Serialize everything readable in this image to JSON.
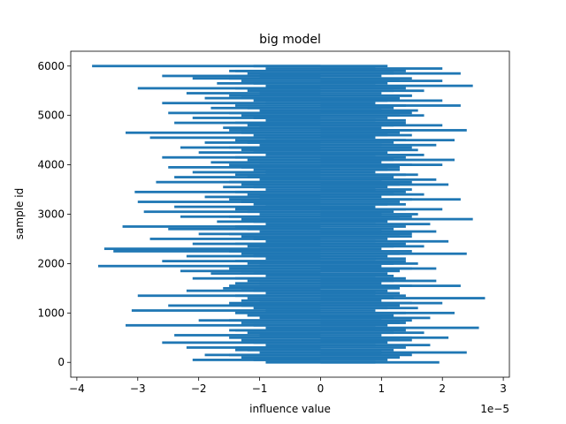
{
  "chart_data": {
    "type": "bar",
    "orientation": "horizontal",
    "title": "big model",
    "xlabel": "influence value",
    "ylabel": "sample id",
    "x_scale_label": "1e−5",
    "xlim": [
      -4.1,
      3.1
    ],
    "ylim": [
      -300,
      6300
    ],
    "x_ticks": [
      -4,
      -3,
      -2,
      -1,
      0,
      1,
      2,
      3
    ],
    "x_tick_labels": [
      "−4",
      "−3",
      "−2",
      "−1",
      "0",
      "1",
      "2",
      "3"
    ],
    "y_ticks": [
      0,
      1000,
      2000,
      3000,
      4000,
      5000,
      6000
    ],
    "y_tick_labels": [
      "0",
      "1000",
      "2000",
      "3000",
      "4000",
      "5000",
      "6000"
    ],
    "grid": false,
    "legend": "none",
    "colors": {
      "bar": "#1f77b4"
    },
    "series": [
      {
        "id_step": 50,
        "ids": [
          0,
          50,
          100,
          150,
          200,
          250,
          300,
          350,
          400,
          450,
          500,
          550,
          600,
          650,
          700,
          750,
          800,
          850,
          900,
          950,
          1000,
          1050,
          1100,
          1150,
          1200,
          1250,
          1300,
          1350,
          1400,
          1450,
          1500,
          1550,
          1600,
          1650,
          1700,
          1750,
          1800,
          1850,
          1900,
          1950,
          2000,
          2050,
          2100,
          2150,
          2200,
          2250,
          2300,
          2350,
          2400,
          2450,
          2500,
          2550,
          2600,
          2650,
          2700,
          2750,
          2800,
          2850,
          2900,
          2950,
          3000,
          3050,
          3100,
          3150,
          3200,
          3250,
          3300,
          3350,
          3400,
          3450,
          3500,
          3550,
          3600,
          3650,
          3700,
          3750,
          3800,
          3850,
          3900,
          3950,
          4000,
          4050,
          4100,
          4150,
          4200,
          4250,
          4300,
          4350,
          4400,
          4450,
          4500,
          4550,
          4600,
          4650,
          4700,
          4750,
          4800,
          4850,
          4900,
          4950,
          5000,
          5050,
          5100,
          5150,
          5200,
          5250,
          5300,
          5350,
          5400,
          5450,
          5500,
          5550,
          5600,
          5650,
          5700,
          5750,
          5800,
          5850,
          5900,
          5950,
          6000
        ],
        "values": [
          1.95,
          -2.1,
          1.3,
          -1.9,
          2.4,
          -1.4,
          -2.2,
          1.8,
          -2.6,
          1.5,
          2.1,
          -2.4,
          1.7,
          -1.5,
          2.6,
          -3.2,
          1.4,
          -2.0,
          1.8,
          -1.2,
          2.2,
          -3.1,
          1.6,
          -2.5,
          2.0,
          -1.3,
          2.7,
          -3.0,
          1.3,
          -2.2,
          -1.6,
          2.3,
          -1.4,
          1.9,
          -2.1,
          1.2,
          -1.8,
          -2.3,
          1.9,
          -3.65,
          1.6,
          -2.6,
          1.4,
          -2.2,
          2.4,
          -3.4,
          -3.55,
          1.7,
          -2.1,
          2.1,
          -2.8,
          1.5,
          -2.0,
          1.9,
          -2.5,
          -3.25,
          1.8,
          -1.7,
          2.5,
          -2.3,
          1.6,
          -2.9,
          2.0,
          -2.4,
          1.4,
          -3.0,
          2.3,
          -1.9,
          1.7,
          -3.05,
          1.5,
          -1.6,
          2.1,
          -2.7,
          1.9,
          -2.4,
          1.6,
          -2.1,
          1.3,
          -2.5,
          2.0,
          -1.8,
          2.2,
          -2.6,
          1.7,
          -2.0,
          1.6,
          -2.3,
          1.9,
          -1.9,
          2.2,
          -2.8,
          1.5,
          -3.2,
          2.4,
          -1.6,
          2.0,
          -2.4,
          1.4,
          -2.1,
          1.7,
          -2.5,
          1.6,
          -1.8,
          2.3,
          -2.6,
          2.0,
          -1.9,
          1.5,
          -2.2,
          1.7,
          -3.0,
          2.5,
          -1.7,
          2.0,
          -2.1,
          -2.6,
          2.3,
          -1.5,
          2.0,
          -3.75
        ]
      }
    ]
  }
}
